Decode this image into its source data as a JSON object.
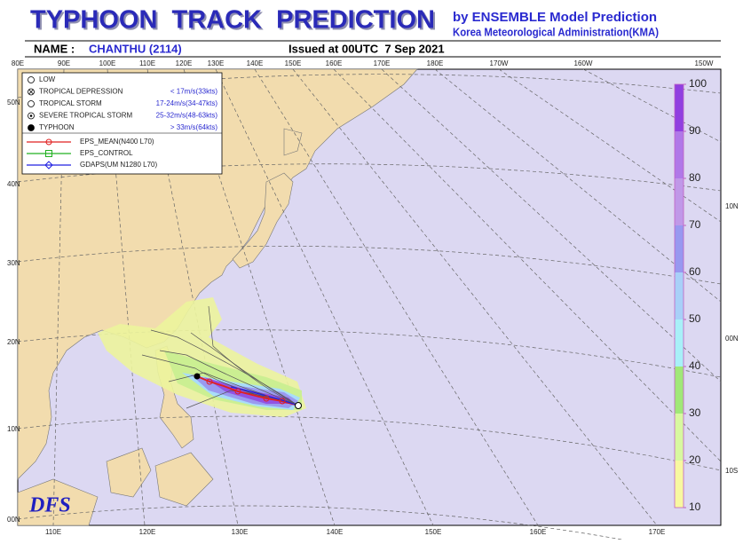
{
  "header": {
    "title": "TYPHOON  TRACK  PREDICTION",
    "agency_line1": "by ENSEMBLE Model Prediction",
    "agency_line2": "Korea Meteorological Administration(KMA)",
    "name_label": "NAME :",
    "name_value": "CHANTHU (2114)",
    "issued": "Issued at 00UTC  7 Sep 2021"
  },
  "top_lon_labels": [
    "80E",
    "90E",
    "100E",
    "110E",
    "120E",
    "130E",
    "140E",
    "150E",
    "160E",
    "170E",
    "180E",
    "170W",
    "160W",
    "150W"
  ],
  "bottom_lon_labels": [
    "110E",
    "120E",
    "130E",
    "140E",
    "150E",
    "160E",
    "170E"
  ],
  "left_lat_labels": [
    "50N",
    "40N",
    "30N",
    "20N",
    "10N",
    "00N"
  ],
  "right_lat_labels": [
    "10N",
    "00N",
    "10S"
  ],
  "legend": {
    "intensity": [
      {
        "label": "LOW"
      },
      {
        "label": "TROPICAL DEPRESSION",
        "range": "< 17m/s(33kts)"
      },
      {
        "label": "TROPICAL STORM",
        "range": "17-24m/s(34-47kts)"
      },
      {
        "label": "SEVERE TROPICAL STORM",
        "range": "25-32m/s(48-63kts)"
      },
      {
        "label": "TYPHOON",
        "range": "> 33m/s(64kts)"
      }
    ],
    "models": [
      {
        "label": "EPS_MEAN(N400 L70)",
        "color": "#e02020"
      },
      {
        "label": "EPS_CONTROL",
        "color": "#20b020"
      },
      {
        "label": "GDAPS(UM N1280 L70)",
        "color": "#2020e0"
      }
    ]
  },
  "colorbar": {
    "ticks": [
      10,
      20,
      30,
      40,
      50,
      60,
      70,
      80,
      90,
      100
    ],
    "colors": [
      "#f8f8a0",
      "#d8f8a0",
      "#a0e878",
      "#a8f0f8",
      "#a8d0f8",
      "#9898f0",
      "#c098e8",
      "#b078e8",
      "#9040e0"
    ]
  },
  "logo": "DFS"
}
